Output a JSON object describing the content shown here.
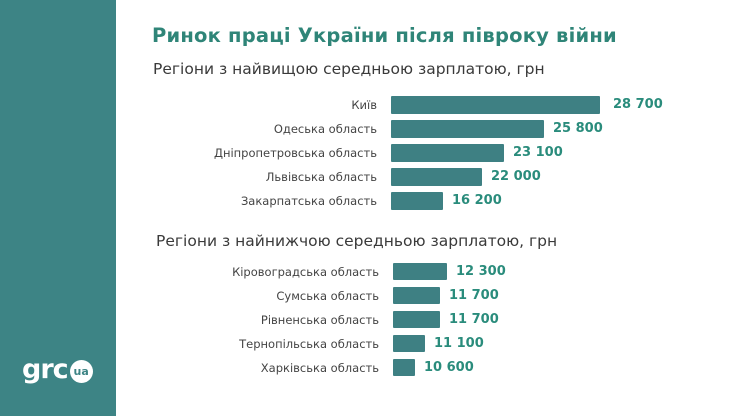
{
  "title": "Ринок праці України після півроку війни",
  "logo": {
    "text": "grc",
    "badge": "ua"
  },
  "colors": {
    "sidebar": "#3d8485",
    "bar": "#3e8083",
    "value": "#2a8c7c",
    "title": "#2f8578"
  },
  "chart_data": [
    {
      "type": "bar",
      "orientation": "horizontal",
      "title": "Регіони з найвищою середньою зарплатою, грн",
      "categories": [
        "Київ",
        "Одеська область",
        "Дніпропетровська область",
        "Львівська область",
        "Закарпатська область"
      ],
      "values": [
        28700,
        25800,
        23100,
        22000,
        16200
      ],
      "value_labels": [
        "28 700",
        "25 800",
        "23 100",
        "22 000",
        "16 200"
      ]
    },
    {
      "type": "bar",
      "orientation": "horizontal",
      "title": "Регіони з найнижчою середньою зарплатою, грн",
      "categories": [
        "Кіровоградська область",
        "Сумська область",
        "Рівненська область",
        "Тернопільська область",
        "Харківська область"
      ],
      "values": [
        12300,
        11700,
        11700,
        11100,
        10600
      ],
      "value_labels": [
        "12 300",
        "11 700",
        "11 700",
        "11 100",
        "10 600"
      ]
    }
  ]
}
